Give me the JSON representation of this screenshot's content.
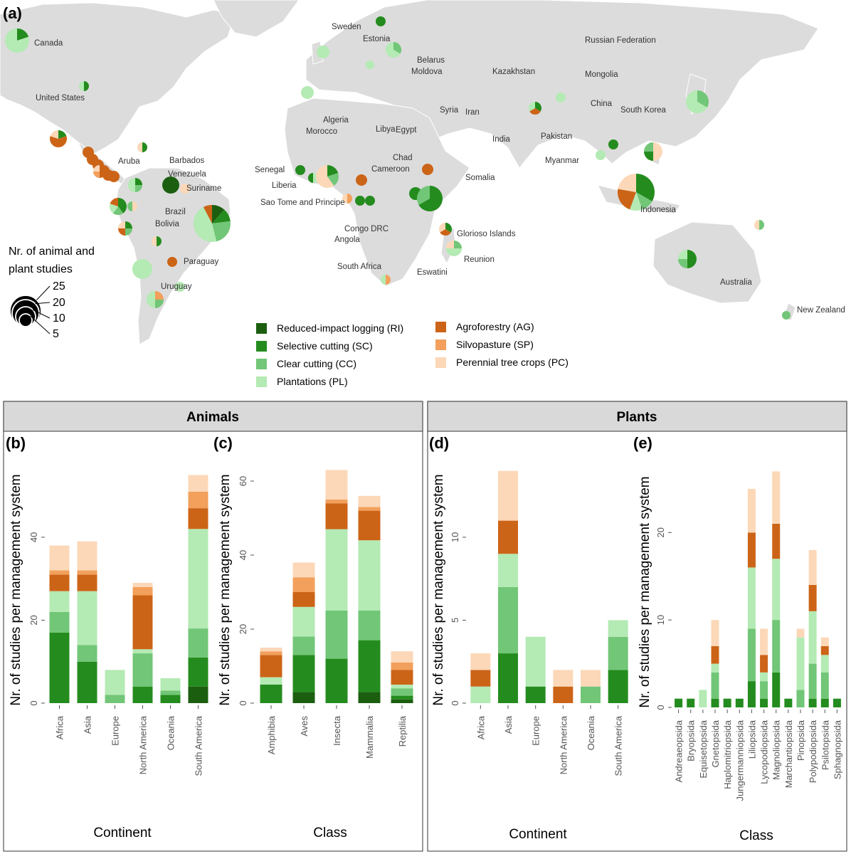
{
  "panel_letters": {
    "a": "(a)",
    "b": "(b)",
    "c": "(c)",
    "d": "(d)",
    "e": "(e)"
  },
  "strip_titles": {
    "animals": "Animals",
    "plants": "Plants"
  },
  "map": {
    "size_legend_title_line1": "Nr. of animal and",
    "size_legend_title_line2": "plant studies",
    "size_legend_values": [
      "25",
      "20",
      "10",
      "5"
    ],
    "country_labels": [
      "Canada",
      "United States",
      "Sweden",
      "Estonia",
      "Belarus",
      "Moldova",
      "Russian Federation",
      "Kazakhstan",
      "Mongolia",
      "China",
      "South Korea",
      "Syria",
      "Iran",
      "Algeria",
      "Morocco",
      "Libya",
      "Egypt",
      "India",
      "Pakistan",
      "Myanmar",
      "Chad",
      "Cameroon",
      "Somalia",
      "Senegal",
      "Liberia",
      "Sao Tome and Principe",
      "Congo DRC",
      "Angola",
      "Glorioso Islands",
      "Reunion",
      "South Africa",
      "Eswatini",
      "Australia",
      "New Zealand",
      "Indonesia",
      "Aruba",
      "Barbados",
      "Venezuela",
      "Suriname",
      "Brazil",
      "Bolivia",
      "Paraguay",
      "Uruguay"
    ]
  },
  "legend": {
    "systems": [
      {
        "code": "RI",
        "label": "Reduced-impact logging (RI)",
        "color": "#1c5e10"
      },
      {
        "code": "SC",
        "label": "Selective cutting (SC)",
        "color": "#248c1e"
      },
      {
        "code": "CC",
        "label": "Clear cutting (CC)",
        "color": "#72c677"
      },
      {
        "code": "PL",
        "label": "Plantations (PL)",
        "color": "#b4eab4"
      },
      {
        "code": "AG",
        "label": "Agroforestry (AG)",
        "color": "#cc6418"
      },
      {
        "code": "SP",
        "label": "Silvopasture (SP)",
        "color": "#f2a05c"
      },
      {
        "code": "PC",
        "label": "Perennial tree crops (PC)",
        "color": "#fcd8b8"
      }
    ]
  },
  "colors": {
    "land": "#dcdcdc",
    "ocean": "#ffffff",
    "strip_bg": "#d9d9d9",
    "panel_border": "#555555",
    "tick": "#555555"
  },
  "chart_data": [
    {
      "id": "b",
      "type": "bar",
      "stacked": true,
      "xlabel": "Continent",
      "ylabel": "Nr. of studies per management system",
      "ylim": [
        0,
        58
      ],
      "yticks": [
        0,
        20,
        40
      ],
      "categories": [
        "Africa",
        "Asia",
        "Europe",
        "North America",
        "Oceania",
        "South America"
      ],
      "series": [
        {
          "code": "RI",
          "values": [
            0,
            0,
            0,
            0,
            0,
            4
          ]
        },
        {
          "code": "SC",
          "values": [
            17,
            10,
            0,
            4,
            2,
            7
          ]
        },
        {
          "code": "CC",
          "values": [
            5,
            4,
            2,
            8,
            1,
            7
          ]
        },
        {
          "code": "PL",
          "values": [
            5,
            13,
            6,
            1,
            3,
            24
          ]
        },
        {
          "code": "AG",
          "values": [
            4,
            4,
            0,
            13,
            0,
            5
          ]
        },
        {
          "code": "SP",
          "values": [
            1,
            1,
            0,
            2,
            0,
            4
          ]
        },
        {
          "code": "PC",
          "values": [
            6,
            7,
            0,
            1,
            0,
            4
          ]
        }
      ]
    },
    {
      "id": "c",
      "type": "bar",
      "stacked": true,
      "xlabel": "Class",
      "ylabel": "Nr. of studies per management system",
      "ylim": [
        0,
        65
      ],
      "yticks": [
        0,
        20,
        40,
        60
      ],
      "categories": [
        "Amphibia",
        "Aves",
        "Insecta",
        "Mammalia",
        "Reptilia"
      ],
      "series": [
        {
          "code": "RI",
          "values": [
            0,
            3,
            0,
            3,
            1
          ]
        },
        {
          "code": "SC",
          "values": [
            5,
            10,
            12,
            14,
            1
          ]
        },
        {
          "code": "CC",
          "values": [
            0,
            5,
            13,
            8,
            2
          ]
        },
        {
          "code": "PL",
          "values": [
            2,
            8,
            22,
            19,
            1
          ]
        },
        {
          "code": "AG",
          "values": [
            6,
            4,
            7,
            8,
            4
          ]
        },
        {
          "code": "SP",
          "values": [
            1,
            4,
            1,
            1,
            2
          ]
        },
        {
          "code": "PC",
          "values": [
            1,
            4,
            8,
            3,
            3
          ]
        }
      ]
    },
    {
      "id": "d",
      "type": "bar",
      "stacked": true,
      "xlabel": "Continent",
      "ylabel": "Nr. of studies per management system",
      "ylim": [
        0,
        14.5
      ],
      "yticks": [
        0,
        5,
        10
      ],
      "categories": [
        "Africa",
        "Asia",
        "Europe",
        "North America",
        "Oceania",
        "South America"
      ],
      "series": [
        {
          "code": "RI",
          "values": [
            0,
            0,
            0,
            0,
            0,
            0
          ]
        },
        {
          "code": "SC",
          "values": [
            0,
            3,
            1,
            0,
            0,
            2
          ]
        },
        {
          "code": "CC",
          "values": [
            0,
            4,
            0,
            0,
            1,
            2
          ]
        },
        {
          "code": "PL",
          "values": [
            1,
            2,
            3,
            0,
            0,
            1
          ]
        },
        {
          "code": "AG",
          "values": [
            1,
            2,
            0,
            1,
            0,
            0
          ]
        },
        {
          "code": "SP",
          "values": [
            0,
            0,
            0,
            0,
            0,
            0
          ]
        },
        {
          "code": "PC",
          "values": [
            1,
            3,
            0,
            1,
            1,
            0
          ]
        }
      ]
    },
    {
      "id": "e",
      "type": "bar",
      "stacked": true,
      "xlabel": "Class",
      "ylabel": "Nr. of studies per management system",
      "ylim": [
        0,
        28
      ],
      "yticks": [
        0,
        10,
        20
      ],
      "categories": [
        "Andreaeopsida",
        "Bryopsida",
        "Equisetopsida",
        "Gnetopsida",
        "Haplomitriopsida",
        "Jungermanniopsida",
        "Liliopsida",
        "Lycopodiopsida",
        "Magnoliopsida",
        "Marchantiopsida",
        "Pinopsida",
        "Polypodiopsida",
        "Psilotopsida",
        "Sphagnopsida"
      ],
      "series": [
        {
          "code": "RI",
          "values": [
            0,
            0,
            0,
            0,
            0,
            0,
            0,
            0,
            0,
            0,
            0,
            0,
            0,
            0
          ]
        },
        {
          "code": "SC",
          "values": [
            1,
            1,
            0,
            1,
            1,
            1,
            3,
            1,
            4,
            1,
            0,
            1,
            1,
            1
          ]
        },
        {
          "code": "CC",
          "values": [
            0,
            0,
            0,
            3,
            0,
            0,
            6,
            2,
            6,
            0,
            2,
            4,
            3,
            0
          ]
        },
        {
          "code": "PL",
          "values": [
            0,
            0,
            2,
            1,
            0,
            0,
            7,
            1,
            7,
            0,
            6,
            6,
            2,
            0
          ]
        },
        {
          "code": "AG",
          "values": [
            0,
            0,
            0,
            2,
            0,
            0,
            4,
            2,
            4,
            0,
            0,
            3,
            1,
            0
          ]
        },
        {
          "code": "SP",
          "values": [
            0,
            0,
            0,
            0,
            0,
            0,
            0,
            0,
            0,
            0,
            0,
            0,
            0,
            0
          ]
        },
        {
          "code": "PC",
          "values": [
            0,
            0,
            0,
            3,
            0,
            0,
            5,
            3,
            6,
            0,
            1,
            4,
            1,
            0
          ]
        }
      ]
    }
  ]
}
